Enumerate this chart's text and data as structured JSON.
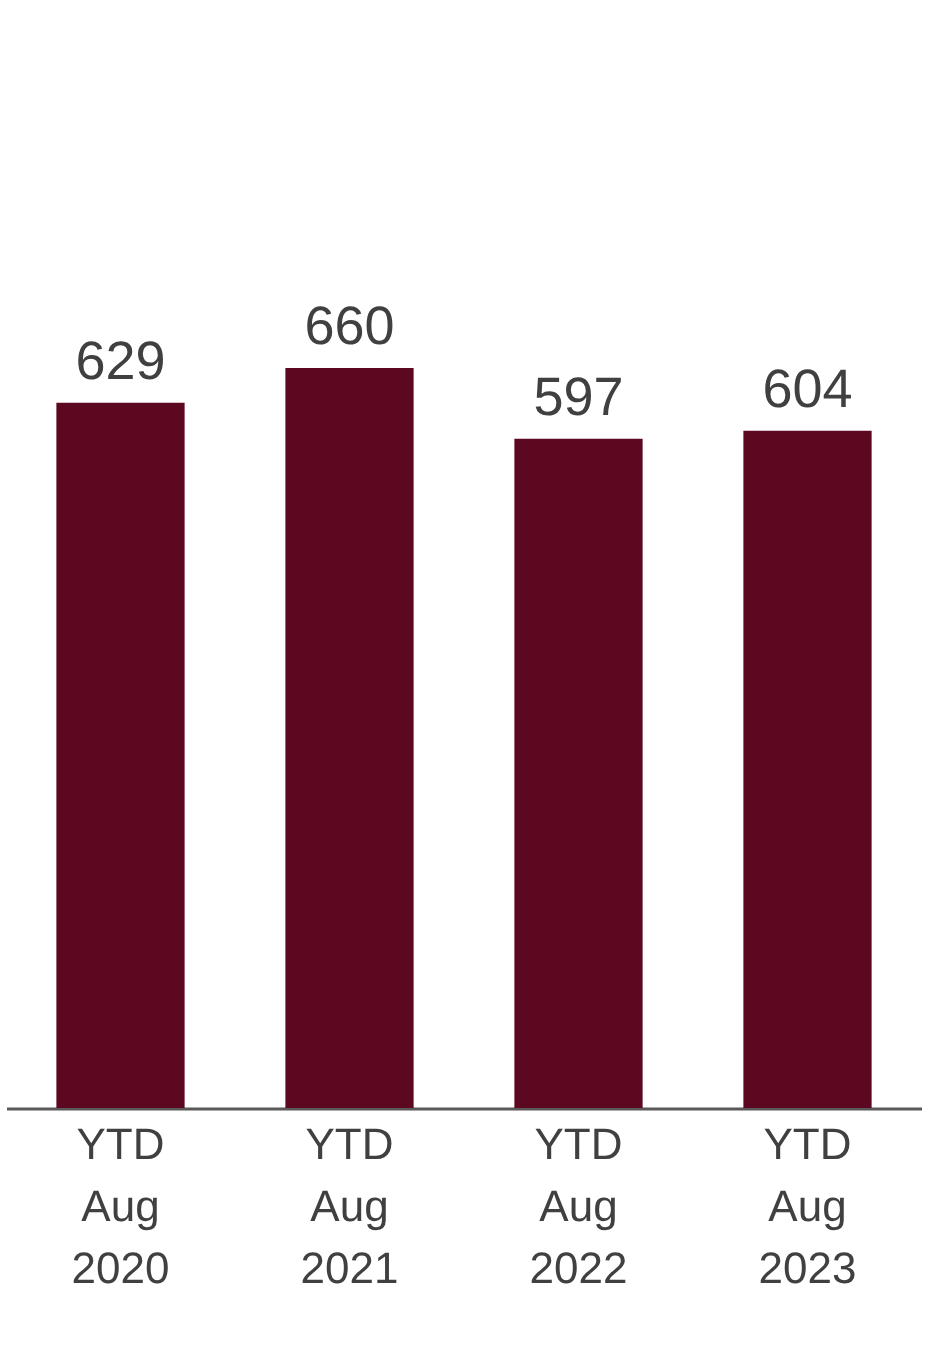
{
  "chart_data": {
    "type": "bar",
    "categories": [
      "YTD Aug 2020",
      "YTD Aug 2021",
      "YTD Aug 2022",
      "YTD Aug 2023"
    ],
    "values": [
      629,
      660,
      597,
      604
    ],
    "color": "#5c0820",
    "data_labels": true,
    "tick_labels": "x"
  }
}
